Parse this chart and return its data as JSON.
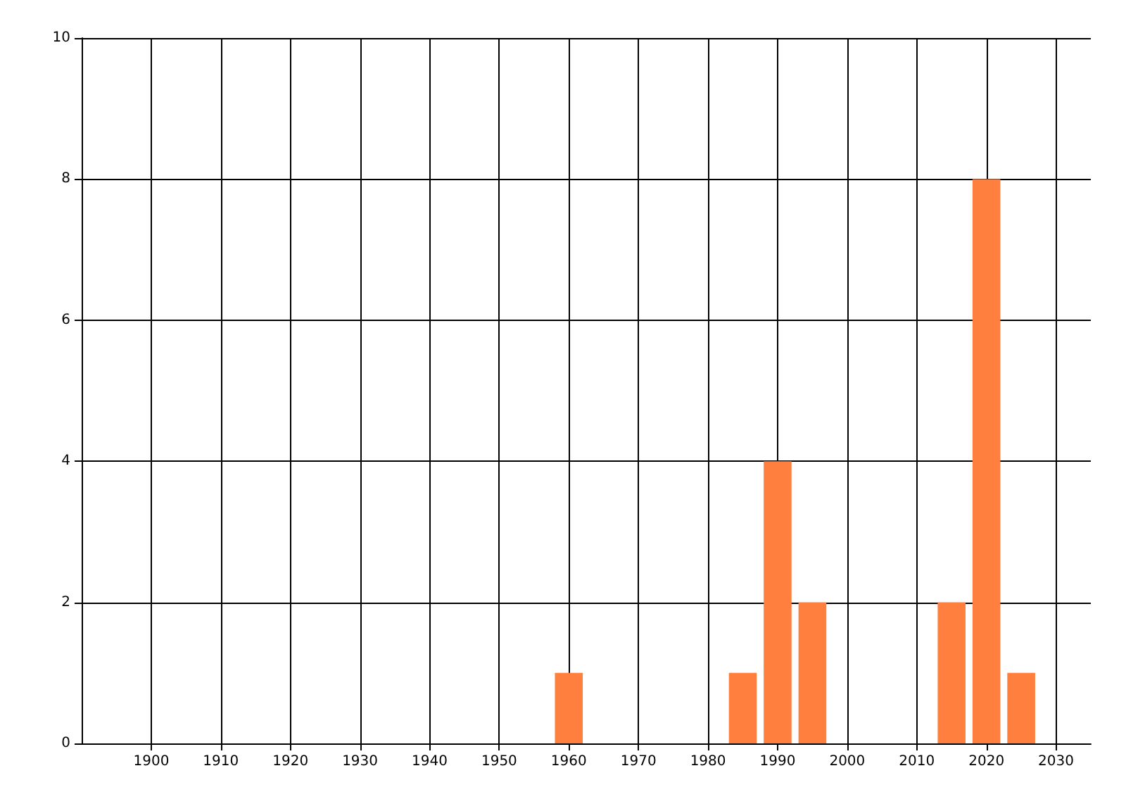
{
  "chart_data": {
    "type": "bar",
    "x": [
      1960,
      1985,
      1990,
      1995,
      2015,
      2020,
      2025
    ],
    "values": [
      1,
      1,
      4,
      2,
      2,
      8,
      1
    ],
    "color": "#ff7f3f",
    "xlim": [
      1890,
      2035
    ],
    "xticks": [
      1900,
      1910,
      1920,
      1930,
      1940,
      1950,
      1960,
      1970,
      1980,
      1990,
      2000,
      2010,
      2020,
      2030
    ],
    "ylim": [
      0,
      10
    ],
    "yticks": [
      0,
      2,
      4,
      6,
      8,
      10
    ],
    "grid": true
  }
}
